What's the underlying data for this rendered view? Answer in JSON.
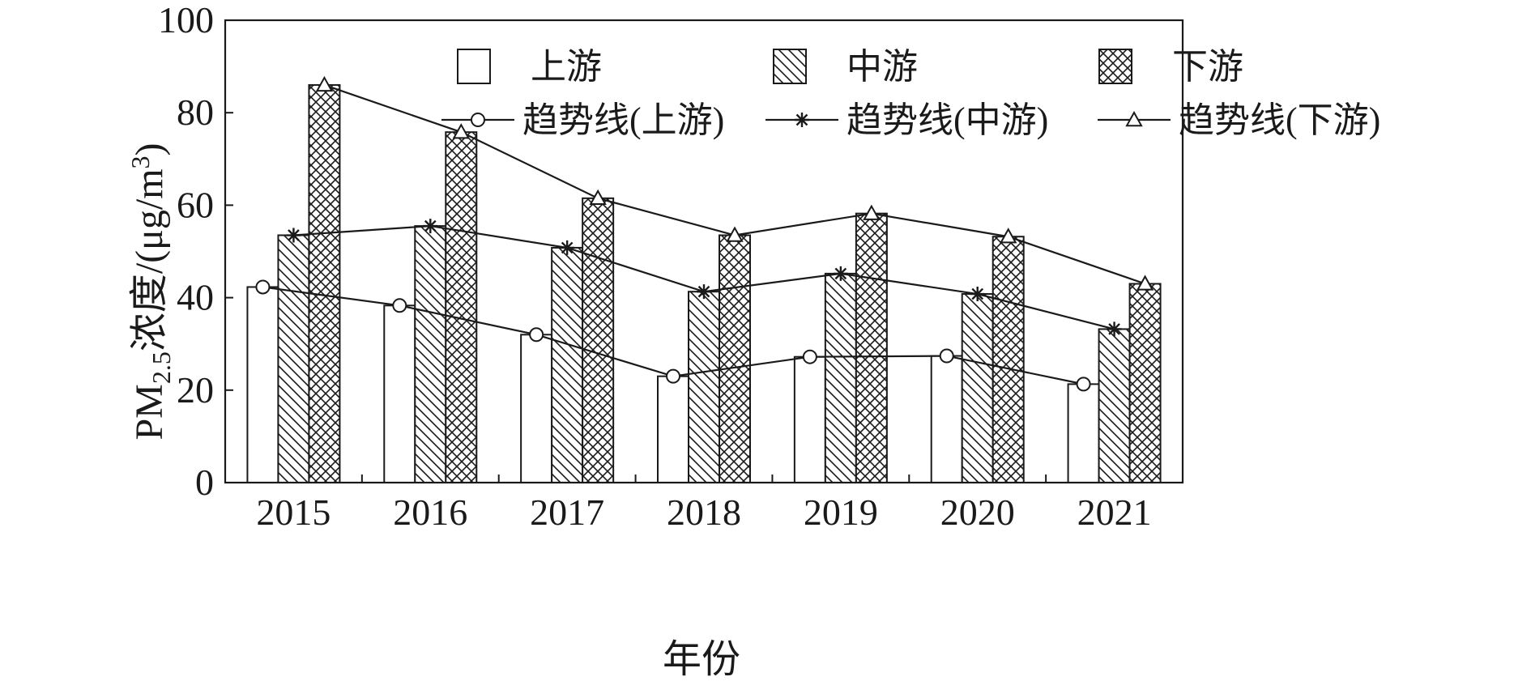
{
  "chart_data": {
    "type": "bar",
    "title": "",
    "xlabel": "年份",
    "ylabel": "PM2.5浓度/(μg/m3)",
    "ylabel_parts": {
      "base": "PM",
      "sub": "2.5",
      "mid": "浓度/(μg/m",
      "sup": "3",
      "end": ")"
    },
    "ylim": [
      0,
      100
    ],
    "yticks": [
      0,
      20,
      40,
      60,
      80,
      100
    ],
    "grid": false,
    "legend_position": "top",
    "categories": [
      "2015",
      "2016",
      "2017",
      "2018",
      "2019",
      "2020",
      "2021"
    ],
    "series": [
      {
        "name": "上游",
        "pattern": "empty",
        "values": [
          42.3,
          38.3,
          32.0,
          23.0,
          27.2,
          27.4,
          21.3
        ]
      },
      {
        "name": "中游",
        "pattern": "diagonal",
        "values": [
          53.5,
          55.5,
          50.8,
          41.3,
          45.2,
          40.8,
          33.2
        ]
      },
      {
        "name": "下游",
        "pattern": "crosshatch",
        "values": [
          86.0,
          75.8,
          61.5,
          53.5,
          58.2,
          53.2,
          43.0
        ]
      }
    ],
    "trend_lines": [
      {
        "name": "趋势线(上游)",
        "marker": "circle",
        "values": [
          42.3,
          38.3,
          32.0,
          23.0,
          27.2,
          27.4,
          21.3
        ]
      },
      {
        "name": "趋势线(中游)",
        "marker": "star",
        "values": [
          53.5,
          55.5,
          50.8,
          41.3,
          45.2,
          40.8,
          33.2
        ]
      },
      {
        "name": "趋势线(下游)",
        "marker": "triangle",
        "values": [
          86.0,
          75.8,
          61.5,
          53.5,
          58.2,
          53.2,
          43.0
        ]
      }
    ]
  }
}
